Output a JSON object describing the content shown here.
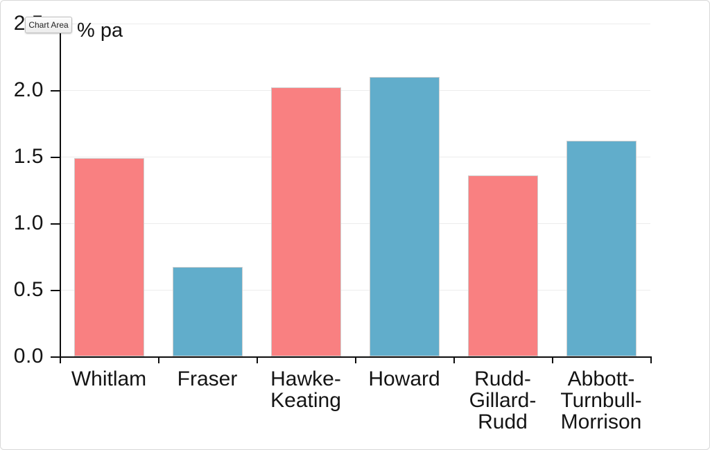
{
  "tooltip": {
    "label": "Chart Area"
  },
  "chart_data": {
    "type": "bar",
    "title": "",
    "ylabel": "% pa",
    "xlabel": "",
    "categories": [
      "Whitlam",
      "Fraser",
      "Hawke-Keating",
      "Howard",
      "Rudd-Gillard-Rudd",
      "Abbott-Turnbull-Morrison"
    ],
    "categories_wrapped": [
      [
        "Whitlam"
      ],
      [
        "Fraser"
      ],
      [
        "Hawke-",
        "Keating"
      ],
      [
        "Howard"
      ],
      [
        "Rudd-",
        "Gillard-",
        "Rudd"
      ],
      [
        "Abbott-",
        "Turnbull-",
        "Morrison"
      ]
    ],
    "values": [
      1.49,
      0.67,
      2.02,
      2.1,
      1.36,
      1.62
    ],
    "bar_colors": [
      "#f98081",
      "#61adcb",
      "#f98081",
      "#61adcb",
      "#f98081",
      "#61adcb"
    ],
    "color_legend": {
      "red": "#f98081",
      "blue": "#61adcb"
    },
    "y_ticks": [
      "0.0",
      "0.5",
      "1.0",
      "1.5",
      "2.0",
      "2.5"
    ],
    "ylim": [
      0,
      2.5
    ],
    "grid": true,
    "legend_position": "none"
  }
}
